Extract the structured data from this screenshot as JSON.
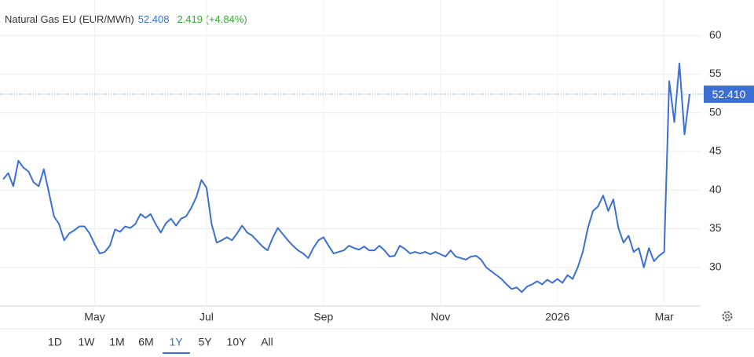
{
  "chart_data": {
    "type": "line",
    "title": "Natural Gas EU (EUR/MWh)",
    "price": 52.408,
    "change": "2.419 (+4.84%)",
    "last_value": {
      "value": 52.41,
      "label": "52.410"
    },
    "categories": [
      null,
      null,
      null,
      null,
      null,
      null,
      null,
      null,
      null,
      null,
      null,
      null,
      null,
      null,
      null,
      null,
      null,
      null,
      "May",
      null,
      null,
      null,
      null,
      null,
      null,
      null,
      null,
      null,
      null,
      null,
      null,
      null,
      null,
      null,
      null,
      null,
      null,
      null,
      null,
      null,
      "Jul",
      null,
      null,
      null,
      null,
      null,
      null,
      null,
      null,
      null,
      null,
      null,
      null,
      null,
      null,
      null,
      null,
      null,
      null,
      null,
      null,
      null,
      null,
      "Sep",
      null,
      null,
      null,
      null,
      null,
      null,
      null,
      null,
      null,
      null,
      null,
      null,
      null,
      null,
      null,
      null,
      null,
      null,
      null,
      null,
      null,
      null,
      "Nov",
      null,
      null,
      null,
      null,
      null,
      null,
      null,
      null,
      null,
      null,
      null,
      null,
      null,
      null,
      null,
      null,
      null,
      null,
      null,
      null,
      null,
      null,
      "2026",
      null,
      null,
      null,
      null,
      null,
      null,
      null,
      null,
      null,
      null,
      null,
      null,
      null,
      null,
      null,
      null,
      null,
      null,
      null,
      null,
      "Mar",
      null,
      null,
      null,
      null,
      null
    ],
    "series": [
      {
        "name": "Natural Gas EU",
        "color": "#3b6fd4",
        "values": [
          41.4,
          42.2,
          40.5,
          43.8,
          42.9,
          42.4,
          41,
          40.5,
          42.7,
          39.7,
          36.6,
          35.6,
          33.5,
          34.4,
          34.8,
          35.3,
          35.3,
          34.4,
          33,
          31.8,
          32,
          32.8,
          34.9,
          34.6,
          35.3,
          35.1,
          35.6,
          36.9,
          36.4,
          36.9,
          35.6,
          34.5,
          35.7,
          36.3,
          35.4,
          36.3,
          36.6,
          37.7,
          39.1,
          41.3,
          40.3,
          35.6,
          33.2,
          33.5,
          33.9,
          33.5,
          34.4,
          35.4,
          34.5,
          34.1,
          33.4,
          32.7,
          32.2,
          33.8,
          35.1,
          34.3,
          33.5,
          32.8,
          32.2,
          31.8,
          31.2,
          32.5,
          33.5,
          33.9,
          32.8,
          31.8,
          32,
          32.2,
          32.8,
          32.5,
          32.3,
          32.7,
          32.2,
          32.2,
          32.8,
          32.2,
          31.4,
          31.5,
          32.8,
          32.4,
          31.8,
          32,
          31.8,
          32,
          31.7,
          32,
          31.7,
          31.4,
          32.2,
          31.4,
          31.2,
          31,
          31.4,
          31.5,
          31,
          30,
          29.5,
          29,
          28.5,
          27.8,
          27.2,
          27.4,
          26.8,
          27.5,
          27.8,
          28.2,
          27.8,
          28.4,
          28,
          28.5,
          28,
          29,
          28.5,
          30,
          32,
          35.1,
          37.3,
          37.9,
          39.3,
          37.3,
          38.8,
          35.1,
          33.2,
          34.1,
          32,
          32.5,
          30,
          32.5,
          30.8,
          31.5,
          32,
          54.1,
          48.8,
          56.4,
          47.2,
          52.41
        ]
      }
    ],
    "ylim": [
      25,
      64.6
    ],
    "yticks": [
      30,
      35,
      40,
      45,
      50,
      55,
      60
    ],
    "grid": true,
    "ranges": [
      "1D",
      "1W",
      "1M",
      "6M",
      "1Y",
      "5Y",
      "10Y",
      "All"
    ],
    "selected_range": "1Y"
  }
}
